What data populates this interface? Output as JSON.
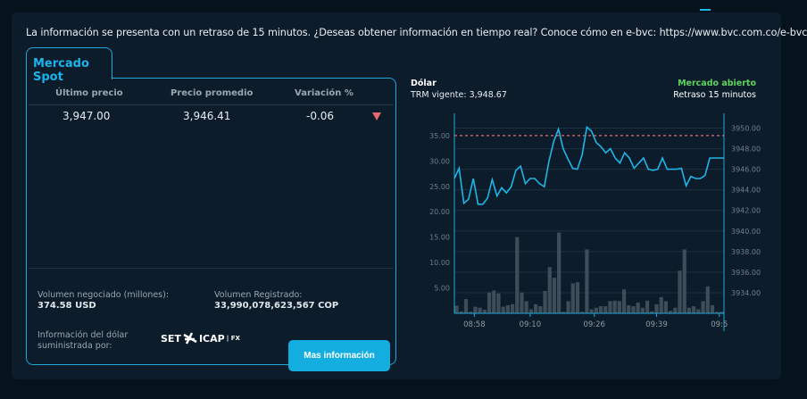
{
  "notice": "La información se presenta con un retraso de 15 minutos. ¿Deseas obtener información en tiempo real? Conoce cómo en e-bvc: https://www.bvc.com.co/e-bvc",
  "tab": "Mercado Spot",
  "table": {
    "headers": [
      "Último precio",
      "Precio promedio",
      "Variación %"
    ],
    "row": [
      "3,947.00",
      "3,946.41",
      "-0.06"
    ],
    "trend": "down",
    "trend_color": "#e56b6b"
  },
  "volume": {
    "label": "Volumen negociado (millones):",
    "value": "374.58 USD"
  },
  "registered": {
    "label": "Volumen Registrado:",
    "value": "33,990,078,623,567 COP"
  },
  "provider": {
    "label": "Información del dólar suministrada por:",
    "logo": "SET ICAP | FX"
  },
  "button": "Mas información",
  "chart_header": {
    "title": "Dólar",
    "trm": "TRM vigente: 3,948.67",
    "status": "Mercado abierto",
    "status_color": "#5fd35f",
    "delay": "Retraso 15 minutos"
  },
  "chart_data": {
    "type": "line+bar",
    "grid": true,
    "left_axis": {
      "ticks": [
        "5.00",
        "10.00",
        "15.00",
        "20.00",
        "25.00",
        "30.00",
        "35.00"
      ],
      "range": [
        0,
        38.5
      ]
    },
    "right_axis": {
      "ticks": [
        "3934.00",
        "3936.00",
        "3938.00",
        "3940.00",
        "3942.00",
        "3944.00",
        "3946.00",
        "3948.00",
        "3950.00"
      ],
      "range": [
        3932,
        3951
      ]
    },
    "x_ticks": [
      {
        "label": "08:58",
        "index": 4.3
      },
      {
        "label": "09:10",
        "index": 16.3
      },
      {
        "label": "09:26",
        "index": 30.1
      },
      {
        "label": "09:39",
        "index": 43.5
      },
      {
        "label": "09:5",
        "index": 57
      }
    ],
    "reference_line": {
      "value": 35,
      "axis": "left",
      "color": "#e06c6c"
    },
    "price_series": [
      3945.1,
      3946.1,
      3942.7,
      3943.1,
      3945.1,
      3942.6,
      3942.6,
      3943.2,
      3945.0,
      3943.4,
      3944.2,
      3943.7,
      3944.3,
      3945.9,
      3946.3,
      3944.6,
      3945.1,
      3945.1,
      3944.6,
      3944.3,
      3946.8,
      3948.7,
      3949.9,
      3948.0,
      3947.0,
      3946.1,
      3946.0,
      3947.4,
      3950.1,
      3949.7,
      3948.6,
      3948.2,
      3947.6,
      3948.0,
      3947.1,
      3946.6,
      3947.6,
      3947.1,
      3946.1,
      3946.6,
      3947.1,
      3946.0,
      3945.9,
      3946.0,
      3947.1,
      3946.0,
      3946.0,
      3946.0,
      3946.1,
      3944.4,
      3945.3,
      3945.1,
      3945.1,
      3945.4,
      3947.1,
      3947.1,
      3947.1,
      3947.1
    ],
    "volume_series": [
      1.5,
      0.4,
      2.8,
      0.3,
      1.3,
      1.1,
      0.7,
      4.1,
      4.5,
      3.9,
      1.3,
      1.6,
      1.8,
      15,
      4.1,
      2.4,
      0.8,
      1.8,
      1.4,
      4.4,
      9.1,
      7.0,
      15.9,
      0.3,
      2.4,
      5.9,
      6.1,
      0.3,
      12.6,
      0.8,
      1.1,
      1.4,
      1.4,
      2.4,
      2.5,
      2.4,
      4.7,
      1.6,
      1.4,
      2.1,
      1.1,
      2.5,
      0.4,
      1.8,
      3.2,
      2.4,
      0.5,
      1.1,
      8.4,
      12.6,
      1.1,
      1.4,
      0.8,
      2.4,
      5.3,
      1.6,
      0.3,
      0.3
    ],
    "line_color": "#1fb5e8",
    "bar_color": "#3d4d5a"
  }
}
